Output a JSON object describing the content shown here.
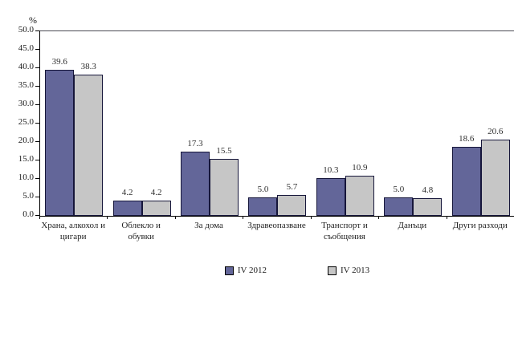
{
  "chart_data": {
    "type": "bar",
    "title": "",
    "unit_label": "%",
    "categories": [
      "Храна, алкохол и цигари",
      "Облекло и обувки",
      "За дома",
      "Здравеопазване",
      "Транспорт и съобщения",
      "Данъци",
      "Други разходи"
    ],
    "category_lines": [
      [
        "Храна, алкохол и",
        "цигари"
      ],
      [
        "Облекло и",
        "обувки"
      ],
      [
        "За дома"
      ],
      [
        "Здравеопазване"
      ],
      [
        "Транспорт и",
        "съобщения"
      ],
      [
        "Данъци"
      ],
      [
        "Други разходи"
      ]
    ],
    "series": [
      {
        "name": "IV 2012",
        "color": "#636699",
        "values": [
          39.6,
          4.2,
          17.3,
          5.0,
          10.3,
          5.0,
          18.6
        ]
      },
      {
        "name": "IV 2013",
        "color": "#C6C6C6",
        "values": [
          38.3,
          4.2,
          15.5,
          5.7,
          10.9,
          4.8,
          20.6
        ]
      }
    ],
    "value_labels": [
      [
        "39.6",
        "4.2",
        "17.3",
        "5.0",
        "10.3",
        "5.0",
        "18.6"
      ],
      [
        "38.3",
        "4.2",
        "15.5",
        "5.7",
        "10.9",
        "4.8",
        "20.6"
      ]
    ],
    "ylim": [
      0,
      50
    ],
    "ytick_step": 5,
    "yticks": [
      "0.0",
      "5.0",
      "10.0",
      "15.0",
      "20.0",
      "25.0",
      "30.0",
      "35.0",
      "40.0",
      "45.0",
      "50.0"
    ],
    "grid": false,
    "legend_position": "bottom",
    "bar_border_color": "#16163a",
    "colors": {
      "series1": "#636699",
      "series2": "#C6C6C6",
      "axis": "#000000",
      "text": "#1a1a1a"
    }
  }
}
